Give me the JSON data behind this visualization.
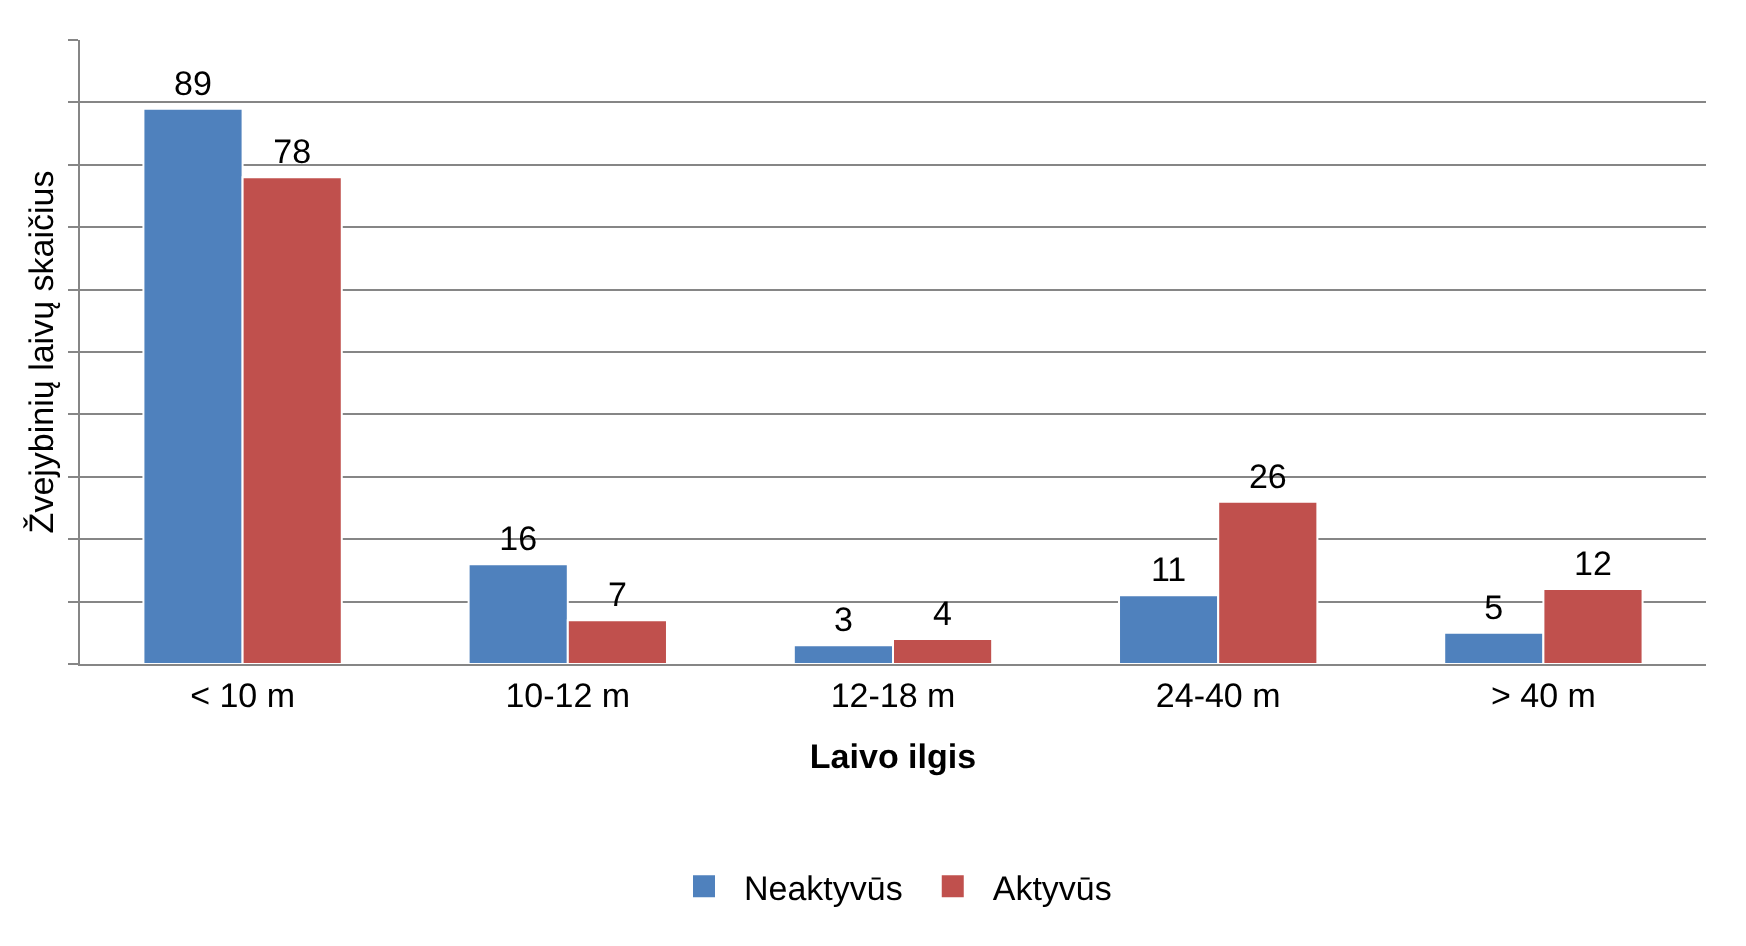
{
  "chart_data": {
    "type": "bar",
    "xlabel": "Laivo ilgis",
    "ylabel": "Žvejybinių laivų skaičius",
    "categories": [
      "< 10 m",
      "10-12 m",
      "12-18 m",
      "24-40 m",
      "> 40 m"
    ],
    "series": [
      {
        "name": "Neaktyvūs",
        "color": "#4f81bd",
        "values": [
          89,
          16,
          3,
          11,
          5
        ]
      },
      {
        "name": "Aktyvūs",
        "color": "#c0504d",
        "values": [
          78,
          7,
          4,
          26,
          12
        ]
      }
    ],
    "ylim": [
      0,
      100
    ],
    "yticks": [
      {
        "value": 0,
        "label": null
      },
      {
        "value": 10,
        "label": null
      },
      {
        "value": 20,
        "label": null
      },
      {
        "value": 30,
        "label": null
      },
      {
        "value": 40,
        "label": null
      },
      {
        "value": 50,
        "label": null
      },
      {
        "value": 60,
        "label": null
      },
      {
        "value": 70,
        "label": null
      },
      {
        "value": 80,
        "label": null
      },
      {
        "value": 90,
        "label": null
      },
      {
        "value": 100,
        "label": null
      }
    ],
    "tick_labels": "x",
    "grid": "y",
    "legend": "bottom",
    "data_labels": true
  }
}
